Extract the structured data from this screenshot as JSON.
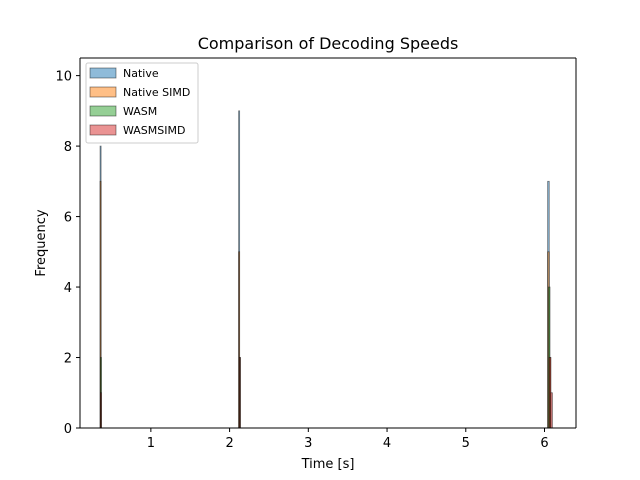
{
  "chart_data": {
    "type": "histogram",
    "title": "Comparison of Decoding Speeds",
    "xlabel": "Time [s]",
    "ylabel": "Frequency",
    "xlim": [
      0.1,
      6.4
    ],
    "ylim": [
      0,
      10.5
    ],
    "xticks": [
      1,
      2,
      3,
      4,
      5,
      6
    ],
    "yticks": [
      0,
      2,
      4,
      6,
      8,
      10
    ],
    "grid": false,
    "legend_position": "top-left",
    "series": [
      {
        "name": "Native",
        "color": "#1f77b4",
        "bars": [
          {
            "x0": 0.355,
            "x1": 0.365,
            "value": 8
          },
          {
            "x0": 2.115,
            "x1": 2.125,
            "value": 9
          },
          {
            "x0": 6.04,
            "x1": 6.06,
            "value": 7
          }
        ]
      },
      {
        "name": "Native SIMD",
        "color": "#ff7f0e",
        "bars": [
          {
            "x0": 0.355,
            "x1": 0.365,
            "value": 7
          },
          {
            "x0": 2.115,
            "x1": 2.125,
            "value": 5
          },
          {
            "x0": 6.04,
            "x1": 6.06,
            "value": 5
          },
          {
            "x0": 6.06,
            "x1": 6.08,
            "value": 2
          }
        ]
      },
      {
        "name": "WASM",
        "color": "#2ca02c",
        "bars": [
          {
            "x0": 0.36,
            "x1": 0.37,
            "value": 2
          },
          {
            "x0": 2.125,
            "x1": 2.135,
            "value": 2
          },
          {
            "x0": 6.05,
            "x1": 6.07,
            "value": 4
          }
        ]
      },
      {
        "name": "WASMSIMD",
        "color": "#d62728",
        "bars": [
          {
            "x0": 0.36,
            "x1": 0.37,
            "value": 1
          },
          {
            "x0": 2.125,
            "x1": 2.135,
            "value": 2
          },
          {
            "x0": 6.06,
            "x1": 6.08,
            "value": 2
          },
          {
            "x0": 6.08,
            "x1": 6.1,
            "value": 1
          }
        ]
      }
    ]
  }
}
